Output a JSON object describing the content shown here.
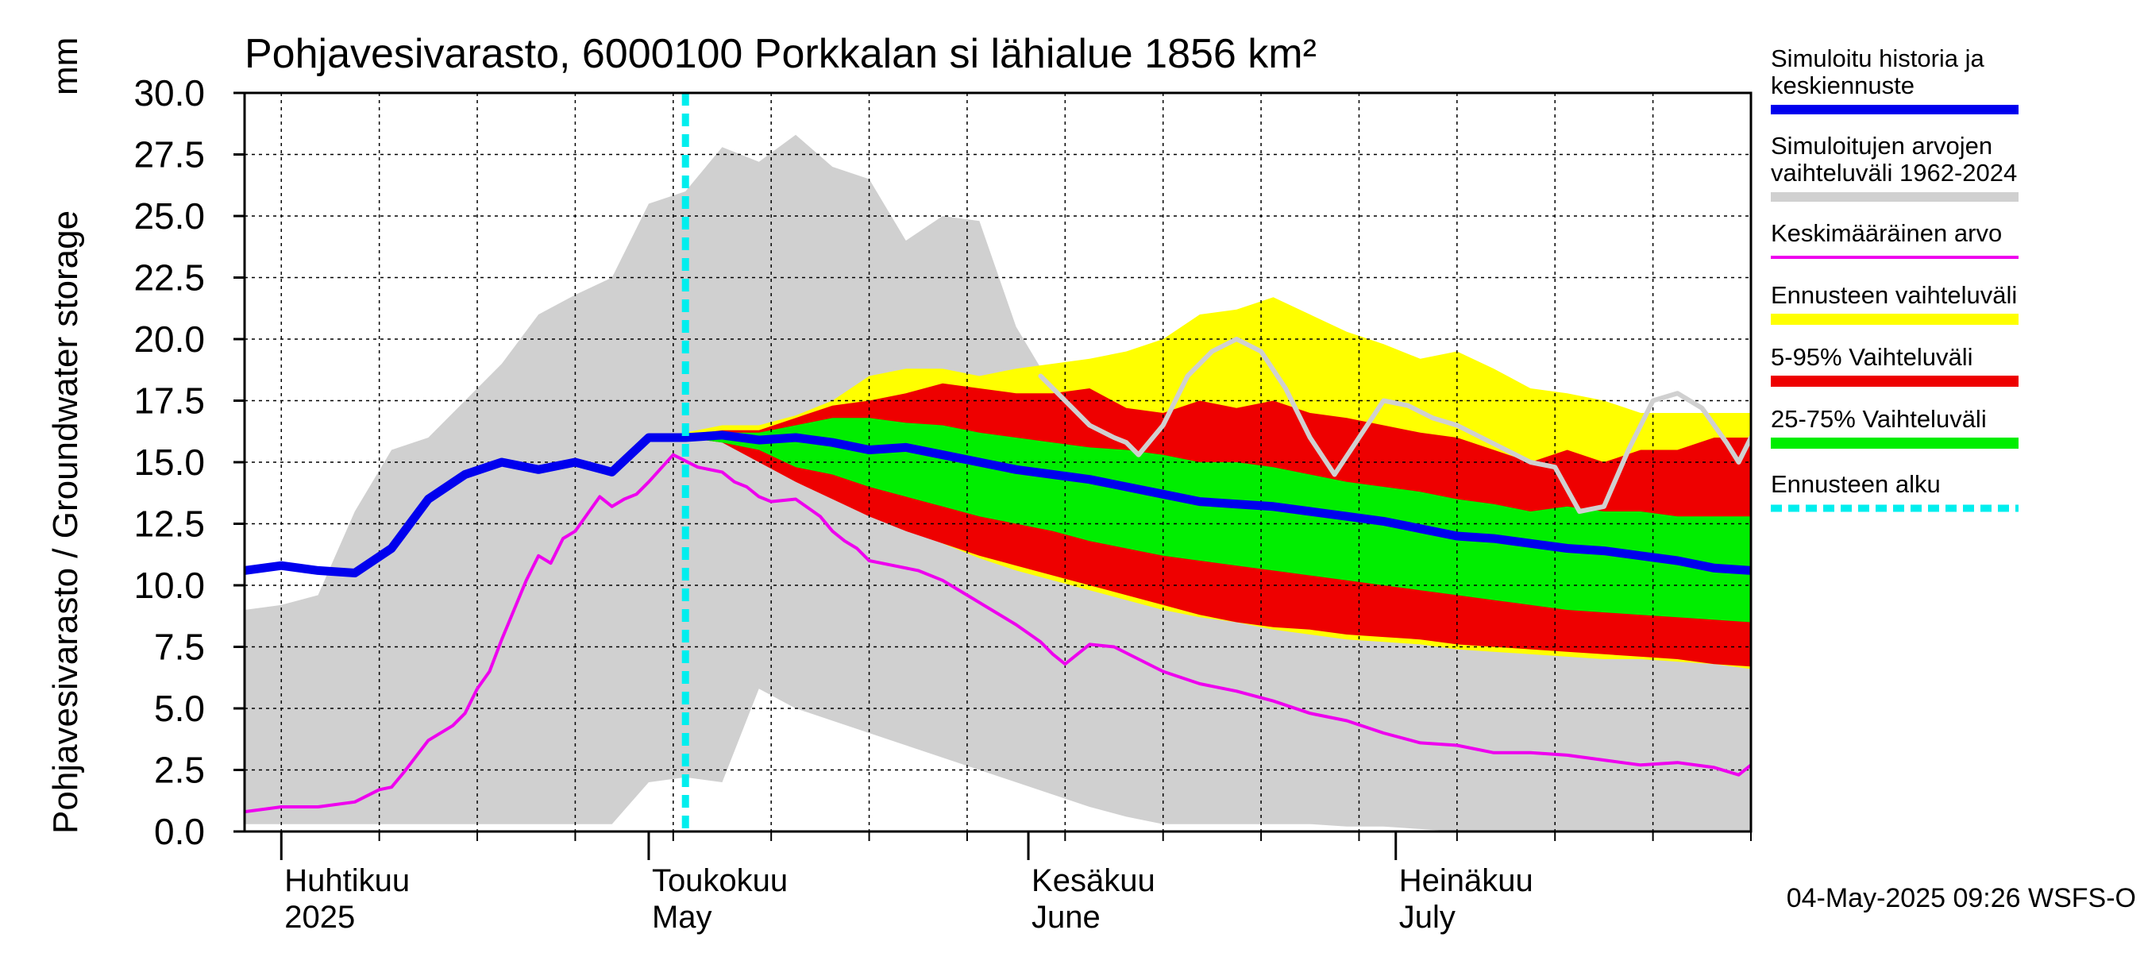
{
  "chart_data": {
    "type": "area",
    "title": "Pohjavesivarasto, 6000100 Porkkalan si lähialue 1856 km²",
    "ylabel": "Pohjavesivarasto / Groundwater storage",
    "yunit": "mm",
    "ylim": [
      0,
      30
    ],
    "yticks": [
      "0.0",
      "2.5",
      "5.0",
      "7.5",
      "10.0",
      "12.5",
      "15.0",
      "17.5",
      "20.0",
      "22.5",
      "25.0",
      "27.5",
      "30.0"
    ],
    "xlim_days": [
      -3,
      120
    ],
    "x_unit": "days since 2025-04-01",
    "months": [
      {
        "fi": "Huhtikuu",
        "en": "2025",
        "day": 0
      },
      {
        "fi": "Toukokuu",
        "en": "May",
        "day": 30
      },
      {
        "fi": "Kesäkuu",
        "en": "June",
        "day": 61
      },
      {
        "fi": "Heinäkuu",
        "en": "July",
        "day": 91
      }
    ],
    "forecast_start_day": 33,
    "timestamp": "04-May-2025 09:26 WSFS-O",
    "legend": [
      {
        "label": "Simuloitu historia ja\nkeskiennuste",
        "color": "#0000ee"
      },
      {
        "label": "Simuloitujen arvojen\nvaihteluväli 1962-2024",
        "color": "#d0d0d0"
      },
      {
        "label": "Keskimääräinen arvo",
        "color": "#ee00ee"
      },
      {
        "label": "Ennusteen vaihteluväli",
        "color": "#ffff00"
      },
      {
        "label": "5-95% Vaihteluväli",
        "color": "#ee0000"
      },
      {
        "label": "25-75% Vaihteluväli",
        "color": "#00ee00"
      },
      {
        "label": "Ennusteen alku",
        "color": "#00eeee"
      }
    ],
    "series": [
      {
        "name": "hist_range",
        "color": "#d0d0d0",
        "x": [
          -3,
          0,
          3,
          6,
          9,
          12,
          15,
          18,
          21,
          24,
          27,
          30,
          33,
          36,
          39,
          42,
          45,
          48,
          51,
          54,
          57,
          60,
          63,
          66,
          69,
          72,
          75,
          78,
          81,
          84,
          87,
          90,
          93,
          96,
          99,
          102,
          105,
          108,
          111,
          114,
          117,
          120
        ],
        "upper": [
          9.0,
          9.2,
          9.6,
          13.0,
          15.5,
          16.0,
          17.5,
          19.0,
          21.0,
          21.8,
          22.5,
          25.5,
          26.0,
          27.8,
          27.2,
          28.3,
          27.0,
          26.5,
          24.0,
          25.0,
          24.8,
          20.5,
          18.0,
          16.0,
          14.8,
          14.0,
          13.0,
          12.5,
          12.0,
          11.8,
          11.5,
          11.0,
          10.5,
          10.0,
          9.8,
          9.5,
          9.0,
          8.8,
          8.5,
          8.5,
          8.0,
          8.0
        ],
        "lower": [
          0.3,
          0.3,
          0.3,
          0.3,
          0.3,
          0.3,
          0.3,
          0.3,
          0.3,
          0.3,
          0.3,
          2.0,
          2.2,
          2.0,
          5.8,
          5.0,
          4.5,
          4.0,
          3.5,
          3.0,
          2.5,
          2.0,
          1.5,
          1.0,
          0.6,
          0.3,
          0.3,
          0.3,
          0.3,
          0.3,
          0.2,
          0.2,
          0.1,
          0.0,
          0.0,
          0.0,
          0.0,
          0.0,
          0.0,
          0.0,
          0.0,
          0.0
        ]
      },
      {
        "name": "forecast_range",
        "color": "#ffff00",
        "x": [
          33,
          36,
          39,
          42,
          45,
          48,
          51,
          54,
          57,
          60,
          63,
          66,
          69,
          72,
          75,
          78,
          81,
          84,
          87,
          90,
          93,
          96,
          99,
          102,
          105,
          108,
          111,
          114,
          117,
          120
        ],
        "upper": [
          16.2,
          16.5,
          16.5,
          16.9,
          17.5,
          18.5,
          18.8,
          18.8,
          18.5,
          18.8,
          19.0,
          19.2,
          19.5,
          20.0,
          21.0,
          21.2,
          21.7,
          21.0,
          20.3,
          19.8,
          19.2,
          19.5,
          18.8,
          18.0,
          17.8,
          17.5,
          17.0,
          17.0,
          17.0,
          17.0
        ],
        "lower": [
          16.0,
          15.8,
          15.3,
          14.5,
          13.8,
          13.0,
          12.3,
          11.7,
          11.1,
          10.6,
          10.2,
          9.8,
          9.4,
          9.0,
          8.7,
          8.5,
          8.2,
          8.0,
          7.8,
          7.7,
          7.6,
          7.4,
          7.3,
          7.2,
          7.1,
          7.0,
          7.0,
          6.9,
          6.8,
          6.6
        ]
      },
      {
        "name": "range_5_95",
        "color": "#ee0000",
        "x": [
          33,
          36,
          39,
          42,
          45,
          48,
          51,
          54,
          57,
          60,
          63,
          66,
          69,
          72,
          75,
          78,
          81,
          84,
          87,
          90,
          93,
          96,
          99,
          102,
          105,
          108,
          111,
          114,
          117,
          120
        ],
        "upper": [
          16.1,
          16.3,
          16.3,
          16.8,
          17.3,
          17.5,
          17.8,
          18.2,
          18.0,
          17.8,
          17.8,
          18.0,
          17.2,
          17.0,
          17.5,
          17.2,
          17.5,
          17.0,
          16.8,
          16.5,
          16.2,
          16.0,
          15.5,
          15.0,
          15.5,
          15.0,
          15.5,
          15.5,
          16.0,
          16.0
        ],
        "lower": [
          16.0,
          15.8,
          15.0,
          14.2,
          13.5,
          12.8,
          12.2,
          11.7,
          11.2,
          10.8,
          10.4,
          10.0,
          9.6,
          9.2,
          8.8,
          8.5,
          8.3,
          8.2,
          8.0,
          7.9,
          7.8,
          7.6,
          7.5,
          7.4,
          7.3,
          7.2,
          7.1,
          7.0,
          6.8,
          6.7
        ]
      },
      {
        "name": "range_25_75",
        "color": "#00ee00",
        "x": [
          33,
          36,
          39,
          42,
          45,
          48,
          51,
          54,
          57,
          60,
          63,
          66,
          69,
          72,
          75,
          78,
          81,
          84,
          87,
          90,
          93,
          96,
          99,
          102,
          105,
          108,
          111,
          114,
          117,
          120
        ],
        "upper": [
          16.1,
          16.2,
          16.2,
          16.5,
          16.8,
          16.8,
          16.6,
          16.5,
          16.2,
          16.0,
          15.8,
          15.6,
          15.5,
          15.3,
          15.0,
          15.0,
          14.8,
          14.5,
          14.2,
          14.0,
          13.8,
          13.5,
          13.3,
          13.0,
          13.2,
          13.0,
          13.0,
          12.8,
          12.8,
          12.8
        ],
        "lower": [
          16.0,
          15.8,
          15.5,
          14.8,
          14.5,
          14.0,
          13.6,
          13.2,
          12.8,
          12.5,
          12.2,
          11.8,
          11.5,
          11.2,
          11.0,
          10.8,
          10.6,
          10.4,
          10.2,
          10.0,
          9.8,
          9.6,
          9.4,
          9.2,
          9.0,
          8.9,
          8.8,
          8.7,
          8.6,
          8.5
        ]
      }
    ],
    "lines": [
      {
        "name": "Keskimääräinen arvo",
        "color": "#ee00ee",
        "width": 4,
        "x": [
          -3,
          0,
          3,
          6,
          8,
          9,
          10,
          12,
          14,
          15,
          16,
          17,
          18,
          19,
          20,
          21,
          22,
          23,
          24,
          25,
          26,
          27,
          28,
          29,
          30,
          32,
          34,
          36,
          37,
          38,
          39,
          40,
          42,
          44,
          45,
          46,
          47,
          48,
          50,
          52,
          54,
          56,
          58,
          60,
          62,
          63,
          64,
          66,
          68,
          70,
          72,
          75,
          78,
          81,
          84,
          87,
          90,
          93,
          96,
          99,
          102,
          105,
          108,
          111,
          114,
          117,
          119,
          120
        ],
        "y": [
          0.8,
          1.0,
          1.0,
          1.2,
          1.7,
          1.8,
          2.4,
          3.7,
          4.3,
          4.8,
          5.8,
          6.5,
          7.8,
          9.0,
          10.2,
          11.2,
          10.9,
          11.9,
          12.2,
          12.9,
          13.6,
          13.2,
          13.5,
          13.7,
          14.2,
          15.3,
          14.8,
          14.6,
          14.2,
          14.0,
          13.6,
          13.4,
          13.5,
          12.8,
          12.2,
          11.8,
          11.5,
          11.0,
          10.8,
          10.6,
          10.2,
          9.6,
          9.0,
          8.4,
          7.7,
          7.2,
          6.8,
          7.6,
          7.5,
          7.0,
          6.5,
          6.0,
          5.7,
          5.3,
          4.8,
          4.5,
          4.0,
          3.6,
          3.5,
          3.2,
          3.2,
          3.1,
          2.9,
          2.7,
          2.8,
          2.6,
          2.3,
          2.7
        ]
      },
      {
        "name": "Upper trace",
        "color": "#d0d0d0",
        "width": 6,
        "x": [
          62,
          64,
          66,
          68,
          69,
          70,
          72,
          74,
          76,
          78,
          80,
          82,
          84,
          86,
          88,
          90,
          92,
          94,
          96,
          98,
          100,
          102,
          104,
          106,
          108,
          110,
          112,
          114,
          116,
          118,
          119,
          120
        ],
        "y": [
          18.5,
          17.5,
          16.5,
          16.0,
          15.8,
          15.3,
          16.5,
          18.5,
          19.5,
          20.0,
          19.5,
          18.0,
          16.0,
          14.5,
          16.0,
          17.5,
          17.3,
          16.8,
          16.5,
          16.0,
          15.5,
          15.0,
          14.8,
          13.0,
          13.2,
          15.5,
          17.5,
          17.8,
          17.2,
          15.8,
          15.0,
          16.0
        ]
      },
      {
        "name": "Simuloitu historia ja keskiennuste",
        "color": "#0000ee",
        "width": 11,
        "x": [
          -3,
          0,
          3,
          6,
          9,
          12,
          15,
          18,
          21,
          24,
          27,
          30,
          33,
          36,
          39,
          42,
          45,
          48,
          51,
          54,
          57,
          60,
          63,
          66,
          69,
          72,
          75,
          78,
          81,
          84,
          87,
          90,
          93,
          96,
          99,
          102,
          105,
          108,
          111,
          114,
          117,
          120
        ],
        "y": [
          10.6,
          10.8,
          10.6,
          10.5,
          11.5,
          13.5,
          14.5,
          15.0,
          14.7,
          15.0,
          14.6,
          16.0,
          16.0,
          16.1,
          15.9,
          16.0,
          15.8,
          15.5,
          15.6,
          15.3,
          15.0,
          14.7,
          14.5,
          14.3,
          14.0,
          13.7,
          13.4,
          13.3,
          13.2,
          13.0,
          12.8,
          12.6,
          12.3,
          12.0,
          11.9,
          11.7,
          11.5,
          11.4,
          11.2,
          11.0,
          10.7,
          10.6
        ]
      }
    ]
  }
}
